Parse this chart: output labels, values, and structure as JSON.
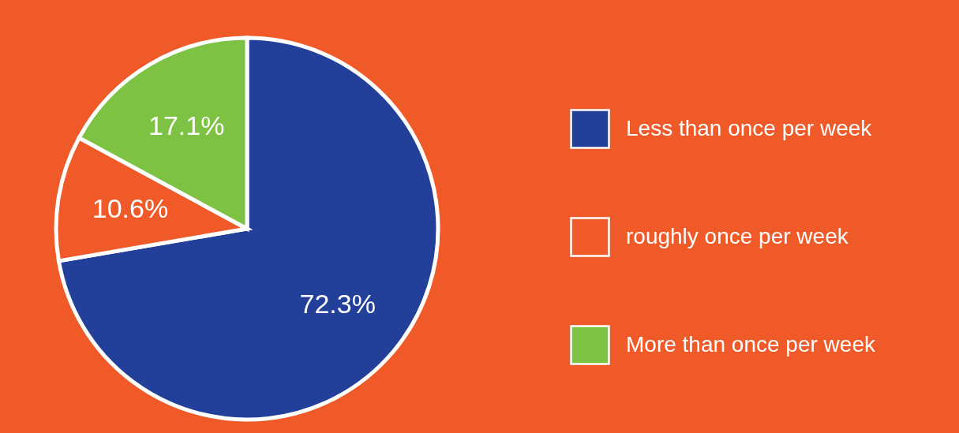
{
  "chart_data": {
    "type": "pie",
    "categories": [
      "Less than once per week",
      "roughly once per week",
      "More than once per week"
    ],
    "values": [
      72.3,
      10.6,
      17.1
    ],
    "colors": [
      "#22409a",
      "#f05a28",
      "#7dc243"
    ],
    "value_labels": [
      "72.3%",
      "10.6%",
      "17.1%"
    ],
    "legend": "right"
  }
}
